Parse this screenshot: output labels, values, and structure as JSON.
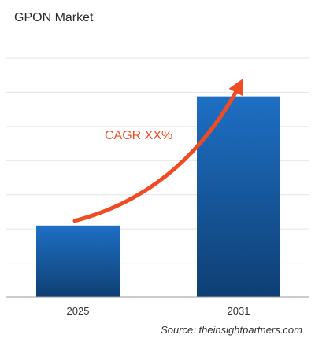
{
  "chart_data": {
    "type": "bar",
    "title": "GPON Market",
    "categories": [
      "2025",
      "2031"
    ],
    "values": [
      30,
      84
    ],
    "ylim": [
      0,
      100
    ],
    "xlabel": "",
    "ylabel": "",
    "grid": true,
    "annotation": "CAGR XX%",
    "source": "Source: theinsightpartners.com"
  },
  "colors": {
    "bar_top": "#1e6fc4",
    "bar_bottom": "#0e3f73",
    "arrow": "#f04b23",
    "annotation": "#f04b23",
    "grid": "#e3e3e3",
    "axis": "#9a9a9a"
  }
}
